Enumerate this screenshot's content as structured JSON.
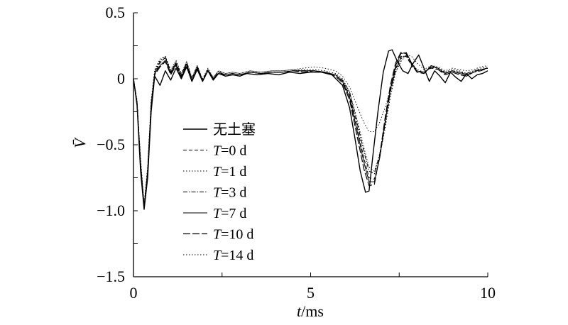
{
  "chart_data": {
    "type": "line",
    "xlabel": "t/ms",
    "ylabel": "V̄",
    "xlim": [
      0,
      10
    ],
    "ylim": [
      -1.5,
      0.5
    ],
    "x_ticks": [
      0,
      5,
      10
    ],
    "x_tick_labels": [
      "0",
      "5",
      "10"
    ],
    "y_ticks": [
      0.5,
      0,
      -0.5,
      -1.0,
      -1.5
    ],
    "y_tick_labels": [
      "0.5",
      "0",
      "−0.5",
      "−1.0",
      "−1.5"
    ],
    "grid": false,
    "legend_position": "lower-left",
    "series": [
      {
        "name": "无土塞",
        "style": "solid",
        "width": 1.4,
        "x": [
          0,
          0.1,
          0.2,
          0.3,
          0.4,
          0.5,
          0.6,
          0.75,
          0.9,
          1.05,
          1.2,
          1.35,
          1.5,
          1.65,
          1.8,
          1.95,
          2.1,
          2.25,
          2.4,
          2.6,
          2.8,
          3.0,
          3.2,
          3.5,
          3.8,
          4.1,
          4.4,
          4.7,
          5.0,
          5.3,
          5.6,
          5.9,
          6.1,
          6.25,
          6.4,
          6.55,
          6.65,
          6.75,
          6.9,
          7.05,
          7.2,
          7.3,
          7.45,
          7.6,
          7.75,
          7.9,
          8.05,
          8.2,
          8.35,
          8.5,
          8.65,
          8.8,
          8.95,
          9.1,
          9.25,
          9.4,
          9.55,
          9.7,
          9.85,
          10.0
        ],
        "y": [
          0,
          -0.2,
          -0.7,
          -0.99,
          -0.75,
          -0.25,
          0.02,
          -0.05,
          0.06,
          -0.01,
          0.08,
          0.0,
          0.09,
          -0.02,
          0.07,
          -0.02,
          0.06,
          -0.01,
          0.04,
          0.02,
          0.03,
          0.02,
          0.04,
          0.03,
          0.04,
          0.03,
          0.05,
          0.04,
          0.05,
          0.05,
          0.03,
          -0.05,
          -0.22,
          -0.45,
          -0.7,
          -0.86,
          -0.85,
          -0.6,
          -0.25,
          0.05,
          0.21,
          0.22,
          0.13,
          0.06,
          0.04,
          0.12,
          0.18,
          0.08,
          -0.02,
          0.06,
          0.02,
          -0.03,
          0.05,
          0.01,
          -0.02,
          0.04,
          0.0,
          0.03,
          0.04,
          0.06
        ]
      },
      {
        "name": "T=0 d",
        "style": "dashed",
        "width": 1.0,
        "x": [
          0,
          0.1,
          0.2,
          0.3,
          0.4,
          0.5,
          0.6,
          0.75,
          0.9,
          1.05,
          1.2,
          1.35,
          1.5,
          1.65,
          1.8,
          1.95,
          2.1,
          2.25,
          2.4,
          2.6,
          2.8,
          3.0,
          3.3,
          3.6,
          3.9,
          4.2,
          4.5,
          4.8,
          5.1,
          5.4,
          5.7,
          5.9,
          6.1,
          6.3,
          6.5,
          6.65,
          6.8,
          6.95,
          7.1,
          7.25,
          7.4,
          7.55,
          7.7,
          7.85,
          8.0,
          8.2,
          8.4,
          8.6,
          8.8,
          9.0,
          9.2,
          9.4,
          9.6,
          9.8,
          10.0
        ],
        "y": [
          0,
          -0.18,
          -0.65,
          -0.97,
          -0.7,
          -0.2,
          0.04,
          0.12,
          0.16,
          0.05,
          0.12,
          0.03,
          0.12,
          0.0,
          0.09,
          -0.01,
          0.07,
          0.0,
          0.05,
          0.03,
          0.04,
          0.03,
          0.05,
          0.04,
          0.05,
          0.05,
          0.06,
          0.06,
          0.06,
          0.05,
          0.03,
          -0.02,
          -0.12,
          -0.35,
          -0.6,
          -0.75,
          -0.76,
          -0.6,
          -0.35,
          -0.1,
          0.08,
          0.17,
          0.17,
          0.1,
          0.06,
          0.05,
          0.08,
          0.07,
          0.04,
          0.06,
          0.05,
          0.03,
          0.05,
          0.07,
          0.08
        ]
      },
      {
        "name": "T=1 d",
        "style": "dotted",
        "width": 1.0,
        "x": [
          0,
          0.1,
          0.2,
          0.3,
          0.4,
          0.5,
          0.6,
          0.75,
          0.9,
          1.05,
          1.2,
          1.35,
          1.5,
          1.65,
          1.8,
          1.95,
          2.1,
          2.25,
          2.4,
          2.6,
          2.8,
          3.0,
          3.3,
          3.6,
          3.9,
          4.2,
          4.5,
          4.8,
          5.1,
          5.4,
          5.7,
          5.9,
          6.1,
          6.3,
          6.5,
          6.65,
          6.8,
          6.95,
          7.1,
          7.25,
          7.4,
          7.55,
          7.7,
          7.85,
          8.0,
          8.2,
          8.4,
          8.6,
          8.8,
          9.0,
          9.2,
          9.4,
          9.6,
          9.8,
          10.0
        ],
        "y": [
          0,
          -0.17,
          -0.63,
          -0.96,
          -0.68,
          -0.18,
          0.06,
          0.14,
          0.17,
          0.06,
          0.13,
          0.03,
          0.13,
          0.0,
          0.1,
          -0.01,
          0.07,
          0.01,
          0.06,
          0.04,
          0.05,
          0.04,
          0.06,
          0.05,
          0.06,
          0.06,
          0.07,
          0.07,
          0.07,
          0.06,
          0.04,
          0.0,
          -0.1,
          -0.3,
          -0.52,
          -0.67,
          -0.7,
          -0.58,
          -0.38,
          -0.14,
          0.05,
          0.15,
          0.18,
          0.12,
          0.07,
          0.05,
          0.09,
          0.08,
          0.05,
          0.07,
          0.06,
          0.04,
          0.06,
          0.08,
          0.09
        ]
      },
      {
        "name": "T=3 d",
        "style": "dashdot",
        "width": 1.0,
        "x": [
          0,
          0.1,
          0.2,
          0.3,
          0.4,
          0.5,
          0.6,
          0.75,
          0.9,
          1.05,
          1.2,
          1.35,
          1.5,
          1.65,
          1.8,
          1.95,
          2.1,
          2.25,
          2.4,
          2.6,
          2.8,
          3.0,
          3.3,
          3.6,
          3.9,
          4.2,
          4.5,
          4.8,
          5.1,
          5.4,
          5.7,
          5.9,
          6.1,
          6.3,
          6.5,
          6.65,
          6.8,
          6.95,
          7.1,
          7.25,
          7.4,
          7.55,
          7.7,
          7.85,
          8.0,
          8.2,
          8.4,
          8.6,
          8.8,
          9.0,
          9.2,
          9.4,
          9.6,
          9.8,
          10.0
        ],
        "y": [
          0,
          -0.18,
          -0.64,
          -0.96,
          -0.69,
          -0.19,
          0.05,
          0.13,
          0.16,
          0.05,
          0.12,
          0.02,
          0.12,
          -0.01,
          0.09,
          -0.02,
          0.07,
          0.0,
          0.05,
          0.03,
          0.04,
          0.03,
          0.05,
          0.04,
          0.05,
          0.05,
          0.06,
          0.06,
          0.06,
          0.05,
          0.03,
          -0.01,
          -0.1,
          -0.32,
          -0.55,
          -0.7,
          -0.72,
          -0.57,
          -0.33,
          -0.1,
          0.07,
          0.16,
          0.18,
          0.11,
          0.06,
          0.05,
          0.09,
          0.08,
          0.05,
          0.06,
          0.05,
          0.04,
          0.06,
          0.07,
          0.08
        ]
      },
      {
        "name": "T=7 d",
        "style": "solid",
        "width": 1.0,
        "x": [
          0,
          0.1,
          0.2,
          0.3,
          0.4,
          0.5,
          0.6,
          0.75,
          0.9,
          1.05,
          1.2,
          1.35,
          1.5,
          1.65,
          1.8,
          1.95,
          2.1,
          2.25,
          2.4,
          2.6,
          2.8,
          3.0,
          3.3,
          3.6,
          3.9,
          4.2,
          4.5,
          4.8,
          5.1,
          5.4,
          5.7,
          5.9,
          6.1,
          6.3,
          6.5,
          6.65,
          6.8,
          6.95,
          7.1,
          7.25,
          7.4,
          7.55,
          7.7,
          7.85,
          8.0,
          8.2,
          8.4,
          8.6,
          8.8,
          9.0,
          9.2,
          9.4,
          9.6,
          9.8,
          10.0
        ],
        "y": [
          0,
          -0.18,
          -0.64,
          -0.97,
          -0.7,
          -0.2,
          0.04,
          0.1,
          0.14,
          0.04,
          0.11,
          0.01,
          0.11,
          -0.02,
          0.08,
          -0.02,
          0.06,
          0.0,
          0.04,
          0.03,
          0.04,
          0.03,
          0.05,
          0.04,
          0.05,
          0.05,
          0.06,
          0.06,
          0.06,
          0.05,
          0.03,
          -0.02,
          -0.14,
          -0.38,
          -0.63,
          -0.78,
          -0.78,
          -0.6,
          -0.33,
          -0.08,
          0.1,
          0.19,
          0.2,
          0.12,
          0.06,
          0.04,
          0.1,
          0.08,
          0.04,
          0.06,
          0.04,
          0.03,
          0.05,
          0.07,
          0.08
        ]
      },
      {
        "name": "T=10 d",
        "style": "longdash",
        "width": 1.2,
        "x": [
          0,
          0.1,
          0.2,
          0.3,
          0.4,
          0.5,
          0.6,
          0.75,
          0.9,
          1.05,
          1.2,
          1.35,
          1.5,
          1.65,
          1.8,
          1.95,
          2.1,
          2.25,
          2.4,
          2.6,
          2.8,
          3.0,
          3.3,
          3.6,
          3.9,
          4.2,
          4.5,
          4.8,
          5.1,
          5.4,
          5.7,
          5.9,
          6.1,
          6.3,
          6.5,
          6.65,
          6.8,
          6.95,
          7.1,
          7.25,
          7.4,
          7.55,
          7.7,
          7.85,
          8.0,
          8.2,
          8.4,
          8.6,
          8.8,
          9.0,
          9.2,
          9.4,
          9.6,
          9.8,
          10.0
        ],
        "y": [
          0,
          -0.18,
          -0.65,
          -0.98,
          -0.71,
          -0.21,
          0.03,
          0.09,
          0.13,
          0.03,
          0.1,
          0.01,
          0.1,
          -0.02,
          0.08,
          -0.02,
          0.06,
          0.0,
          0.04,
          0.03,
          0.04,
          0.03,
          0.05,
          0.04,
          0.05,
          0.05,
          0.06,
          0.05,
          0.06,
          0.05,
          0.02,
          -0.03,
          -0.16,
          -0.42,
          -0.68,
          -0.81,
          -0.8,
          -0.58,
          -0.3,
          -0.05,
          0.12,
          0.2,
          0.19,
          0.11,
          0.05,
          0.04,
          0.09,
          0.07,
          0.03,
          0.05,
          0.03,
          0.02,
          0.05,
          0.06,
          0.08
        ]
      },
      {
        "name": "T=14 d",
        "style": "dotted",
        "width": 0.9,
        "x": [
          0,
          0.1,
          0.2,
          0.3,
          0.4,
          0.5,
          0.6,
          0.75,
          0.9,
          1.05,
          1.2,
          1.35,
          1.5,
          1.65,
          1.8,
          1.95,
          2.1,
          2.25,
          2.4,
          2.6,
          2.8,
          3.0,
          3.3,
          3.6,
          3.9,
          4.2,
          4.5,
          4.8,
          5.1,
          5.4,
          5.7,
          5.9,
          6.1,
          6.3,
          6.5,
          6.65,
          6.8,
          6.95,
          7.1,
          7.25,
          7.4,
          7.55,
          7.7,
          7.85,
          8.0,
          8.2,
          8.4,
          8.6,
          8.8,
          9.0,
          9.2,
          9.4,
          9.6,
          9.8,
          10.0
        ],
        "y": [
          0,
          -0.16,
          -0.6,
          -0.95,
          -0.66,
          -0.16,
          0.07,
          0.15,
          0.17,
          0.07,
          0.14,
          0.04,
          0.13,
          0.01,
          0.1,
          0.0,
          0.08,
          0.01,
          0.06,
          0.04,
          0.05,
          0.04,
          0.06,
          0.05,
          0.06,
          0.06,
          0.07,
          0.08,
          0.09,
          0.08,
          0.06,
          0.02,
          -0.06,
          -0.2,
          -0.33,
          -0.4,
          -0.4,
          -0.33,
          -0.22,
          -0.08,
          0.05,
          0.13,
          0.18,
          0.17,
          0.12,
          0.07,
          0.1,
          0.09,
          0.06,
          0.08,
          0.07,
          0.06,
          0.07,
          0.09,
          0.1
        ]
      }
    ]
  }
}
